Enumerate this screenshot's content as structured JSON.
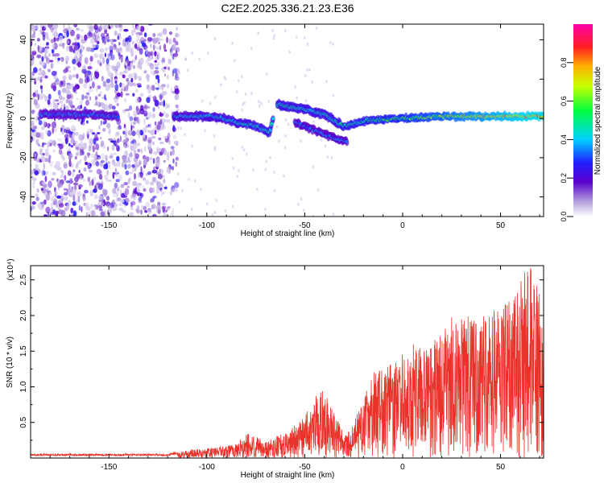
{
  "figure": {
    "title": "C2E2.2025.336.21.23.E36"
  },
  "chart_data": [
    {
      "type": "heatmap",
      "title": "C2E2.2025.336.21.23.E36",
      "xlabel": "Height of straight line (km)",
      "ylabel": "Frequency (Hz)",
      "xlim": [
        -190,
        72
      ],
      "ylim": [
        -50,
        48
      ],
      "xticks": [
        -150,
        -100,
        -50,
        0,
        50
      ],
      "xtick_labels": [
        "-150",
        "-100",
        "-50",
        "0",
        "50"
      ],
      "yticks": [
        -40,
        -20,
        0,
        20,
        40
      ],
      "ytick_labels": [
        "-40",
        "-20",
        "0",
        "20",
        "40"
      ],
      "colorbar": {
        "label": "Normalized spectral amplitude",
        "range": [
          0,
          1
        ],
        "ticks": [
          0,
          0.2,
          0.4,
          0.6,
          0.8
        ],
        "tick_labels": [
          "0.0",
          "0.2",
          "0.4",
          "0.6",
          "0.8"
        ]
      },
      "trace": [
        {
          "x": -185,
          "y": 2
        },
        {
          "x": -160,
          "y": 2
        },
        {
          "x": -145,
          "y": 1
        },
        {
          "x": -115,
          "y": 1
        },
        {
          "x": -95,
          "y": 1
        },
        {
          "x": -85,
          "y": -2
        },
        {
          "x": -75,
          "y": -4
        },
        {
          "x": -68,
          "y": -7
        },
        {
          "x": -64,
          "y": 7
        },
        {
          "x": -52,
          "y": 5
        },
        {
          "x": -40,
          "y": 2
        },
        {
          "x": -30,
          "y": -4
        },
        {
          "x": -18,
          "y": -1
        },
        {
          "x": 0,
          "y": 0
        },
        {
          "x": 20,
          "y": 1
        },
        {
          "x": 40,
          "y": 1
        },
        {
          "x": 60,
          "y": 1
        },
        {
          "x": 72,
          "y": 1
        }
      ],
      "branch": [
        {
          "x": -55,
          "y": -2
        },
        {
          "x": -45,
          "y": -6
        },
        {
          "x": -35,
          "y": -10
        },
        {
          "x": -28,
          "y": -12
        }
      ],
      "noise_region_x": [
        -190,
        -115
      ]
    },
    {
      "type": "line",
      "xlabel": "Height of straight line (km)",
      "ylabel": "SNR (10 * v/v)",
      "y_scale_label": "(x10⁴)",
      "xlim": [
        -190,
        72
      ],
      "ylim": [
        0,
        2.7
      ],
      "xticks": [
        -150,
        -100,
        -50,
        0,
        50
      ],
      "xtick_labels": [
        "-150",
        "-100",
        "-50",
        "0",
        "50"
      ],
      "yticks": [
        0.5,
        1.0,
        1.5,
        2.0,
        2.5
      ],
      "ytick_labels": [
        "0.5",
        "1.0",
        "1.5",
        "2.0",
        "2.5"
      ],
      "color": "#e8322a",
      "envelope": [
        {
          "x": -190,
          "y": 0.05
        },
        {
          "x": -120,
          "y": 0.05
        },
        {
          "x": -108,
          "y": 0.12
        },
        {
          "x": -95,
          "y": 0.15
        },
        {
          "x": -85,
          "y": 0.2
        },
        {
          "x": -80,
          "y": 0.35
        },
        {
          "x": -70,
          "y": 0.25
        },
        {
          "x": -60,
          "y": 0.35
        },
        {
          "x": -50,
          "y": 0.6
        },
        {
          "x": -42,
          "y": 1.0
        },
        {
          "x": -38,
          "y": 0.9
        },
        {
          "x": -30,
          "y": 0.35
        },
        {
          "x": -25,
          "y": 0.5
        },
        {
          "x": -15,
          "y": 1.2
        },
        {
          "x": -5,
          "y": 1.35
        },
        {
          "x": 5,
          "y": 1.6
        },
        {
          "x": 15,
          "y": 1.6
        },
        {
          "x": 25,
          "y": 2.0
        },
        {
          "x": 35,
          "y": 2.0
        },
        {
          "x": 45,
          "y": 2.1
        },
        {
          "x": 55,
          "y": 2.3
        },
        {
          "x": 62,
          "y": 2.6
        },
        {
          "x": 67,
          "y": 2.7
        },
        {
          "x": 72,
          "y": 2.2
        }
      ]
    }
  ]
}
